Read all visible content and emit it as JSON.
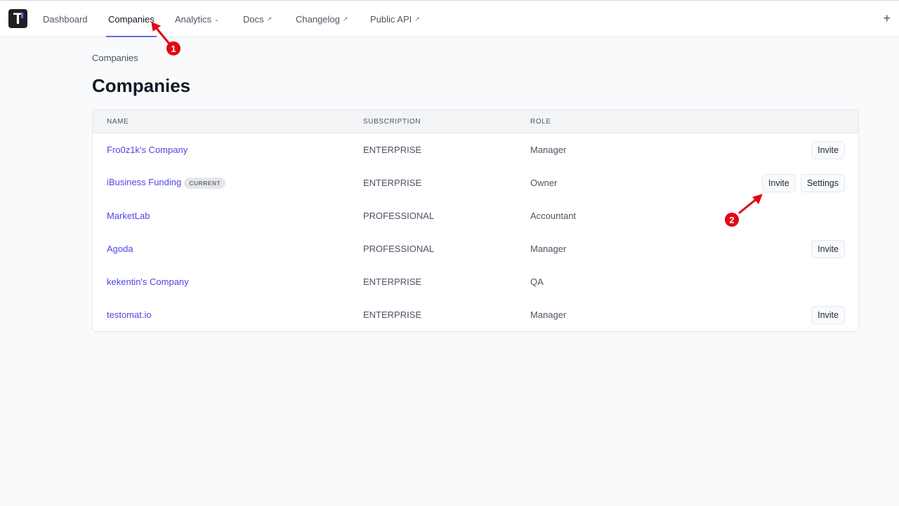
{
  "nav": {
    "logo": "T",
    "tabs": [
      {
        "label": "Dashboard"
      },
      {
        "label": "Companies",
        "active": true
      },
      {
        "label": "Analytics",
        "icon": "chevron-down-icon"
      },
      {
        "label": "Docs",
        "icon": "external-link-icon"
      },
      {
        "label": "Changelog",
        "icon": "external-link-icon"
      },
      {
        "label": "Public API",
        "icon": "external-link-icon"
      }
    ],
    "plus": "+"
  },
  "breadcrumb": "Companies",
  "title": "Companies",
  "table": {
    "headers": [
      "NAME",
      "SUBSCRIPTION",
      "ROLE"
    ],
    "rows": [
      {
        "name": "Fro0z1k's Company",
        "subscription": "ENTERPRISE",
        "role": "Manager",
        "actions": [
          "Invite"
        ]
      },
      {
        "name": "iBusiness Funding",
        "badge": "CURRENT",
        "subscription": "ENTERPRISE",
        "role": "Owner",
        "actions": [
          "Invite",
          "Settings"
        ]
      },
      {
        "name": "MarketLab",
        "subscription": "PROFESSIONAL",
        "role": "Accountant",
        "actions": []
      },
      {
        "name": "Agoda",
        "subscription": "PROFESSIONAL",
        "role": "Manager",
        "actions": [
          "Invite"
        ]
      },
      {
        "name": "kekentin's Company",
        "subscription": "ENTERPRISE",
        "role": "QA",
        "actions": []
      },
      {
        "name": "testomat.io",
        "subscription": "ENTERPRISE",
        "role": "Manager",
        "actions": [
          "Invite"
        ]
      }
    ]
  },
  "annotations": [
    "1",
    "2"
  ],
  "colors": {
    "accent": "#6366f1",
    "link": "#4f46e5",
    "annotation": "#e30613"
  }
}
